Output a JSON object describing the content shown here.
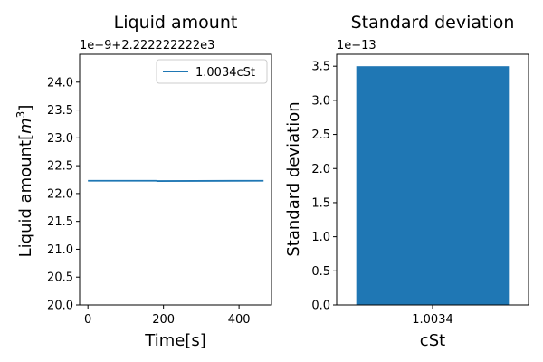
{
  "colors": {
    "series": "#1f77b4",
    "axis": "#000000",
    "background": "#ffffff",
    "legend_border": "#cccccc"
  },
  "chart_data": [
    {
      "type": "line",
      "title": "Liquid amount",
      "xlabel": "Time[s]",
      "ylabel_main": "Liquid amount[",
      "ylabel_unit": "m",
      "ylabel_sup": "3",
      "ylabel_close": "]",
      "offset_label": "1e−9+2.222222222e3",
      "xlim": [
        -22,
        486
      ],
      "ylim": [
        20.0,
        24.5
      ],
      "xticks": [
        0,
        200,
        400
      ],
      "xtick_labels": [
        "0",
        "200",
        "400"
      ],
      "yticks": [
        20.0,
        20.5,
        21.0,
        21.5,
        22.0,
        22.5,
        23.0,
        23.5,
        24.0
      ],
      "ytick_labels": [
        "20.0",
        "20.5",
        "21.0",
        "21.5",
        "22.0",
        "22.5",
        "23.0",
        "23.5",
        "24.0"
      ],
      "legend_position": "upper-right",
      "series": [
        {
          "name": "1.0034cSt",
          "x": [
            0,
            180,
            185,
            465
          ],
          "y": [
            22.23,
            22.23,
            22.225,
            22.23
          ]
        }
      ]
    },
    {
      "type": "bar",
      "title": "Standard deviation",
      "xlabel": "cSt",
      "ylabel": "Standard deviation",
      "offset_label": "1e−13",
      "categories": [
        "1.0034"
      ],
      "values": [
        3.5
      ],
      "ylim": [
        0,
        3.675
      ],
      "yticks": [
        0.0,
        0.5,
        1.0,
        1.5,
        2.0,
        2.5,
        3.0,
        3.5
      ],
      "ytick_labels": [
        "0.0",
        "0.5",
        "1.0",
        "1.5",
        "2.0",
        "2.5",
        "3.0",
        "3.5"
      ],
      "grid": false
    }
  ]
}
